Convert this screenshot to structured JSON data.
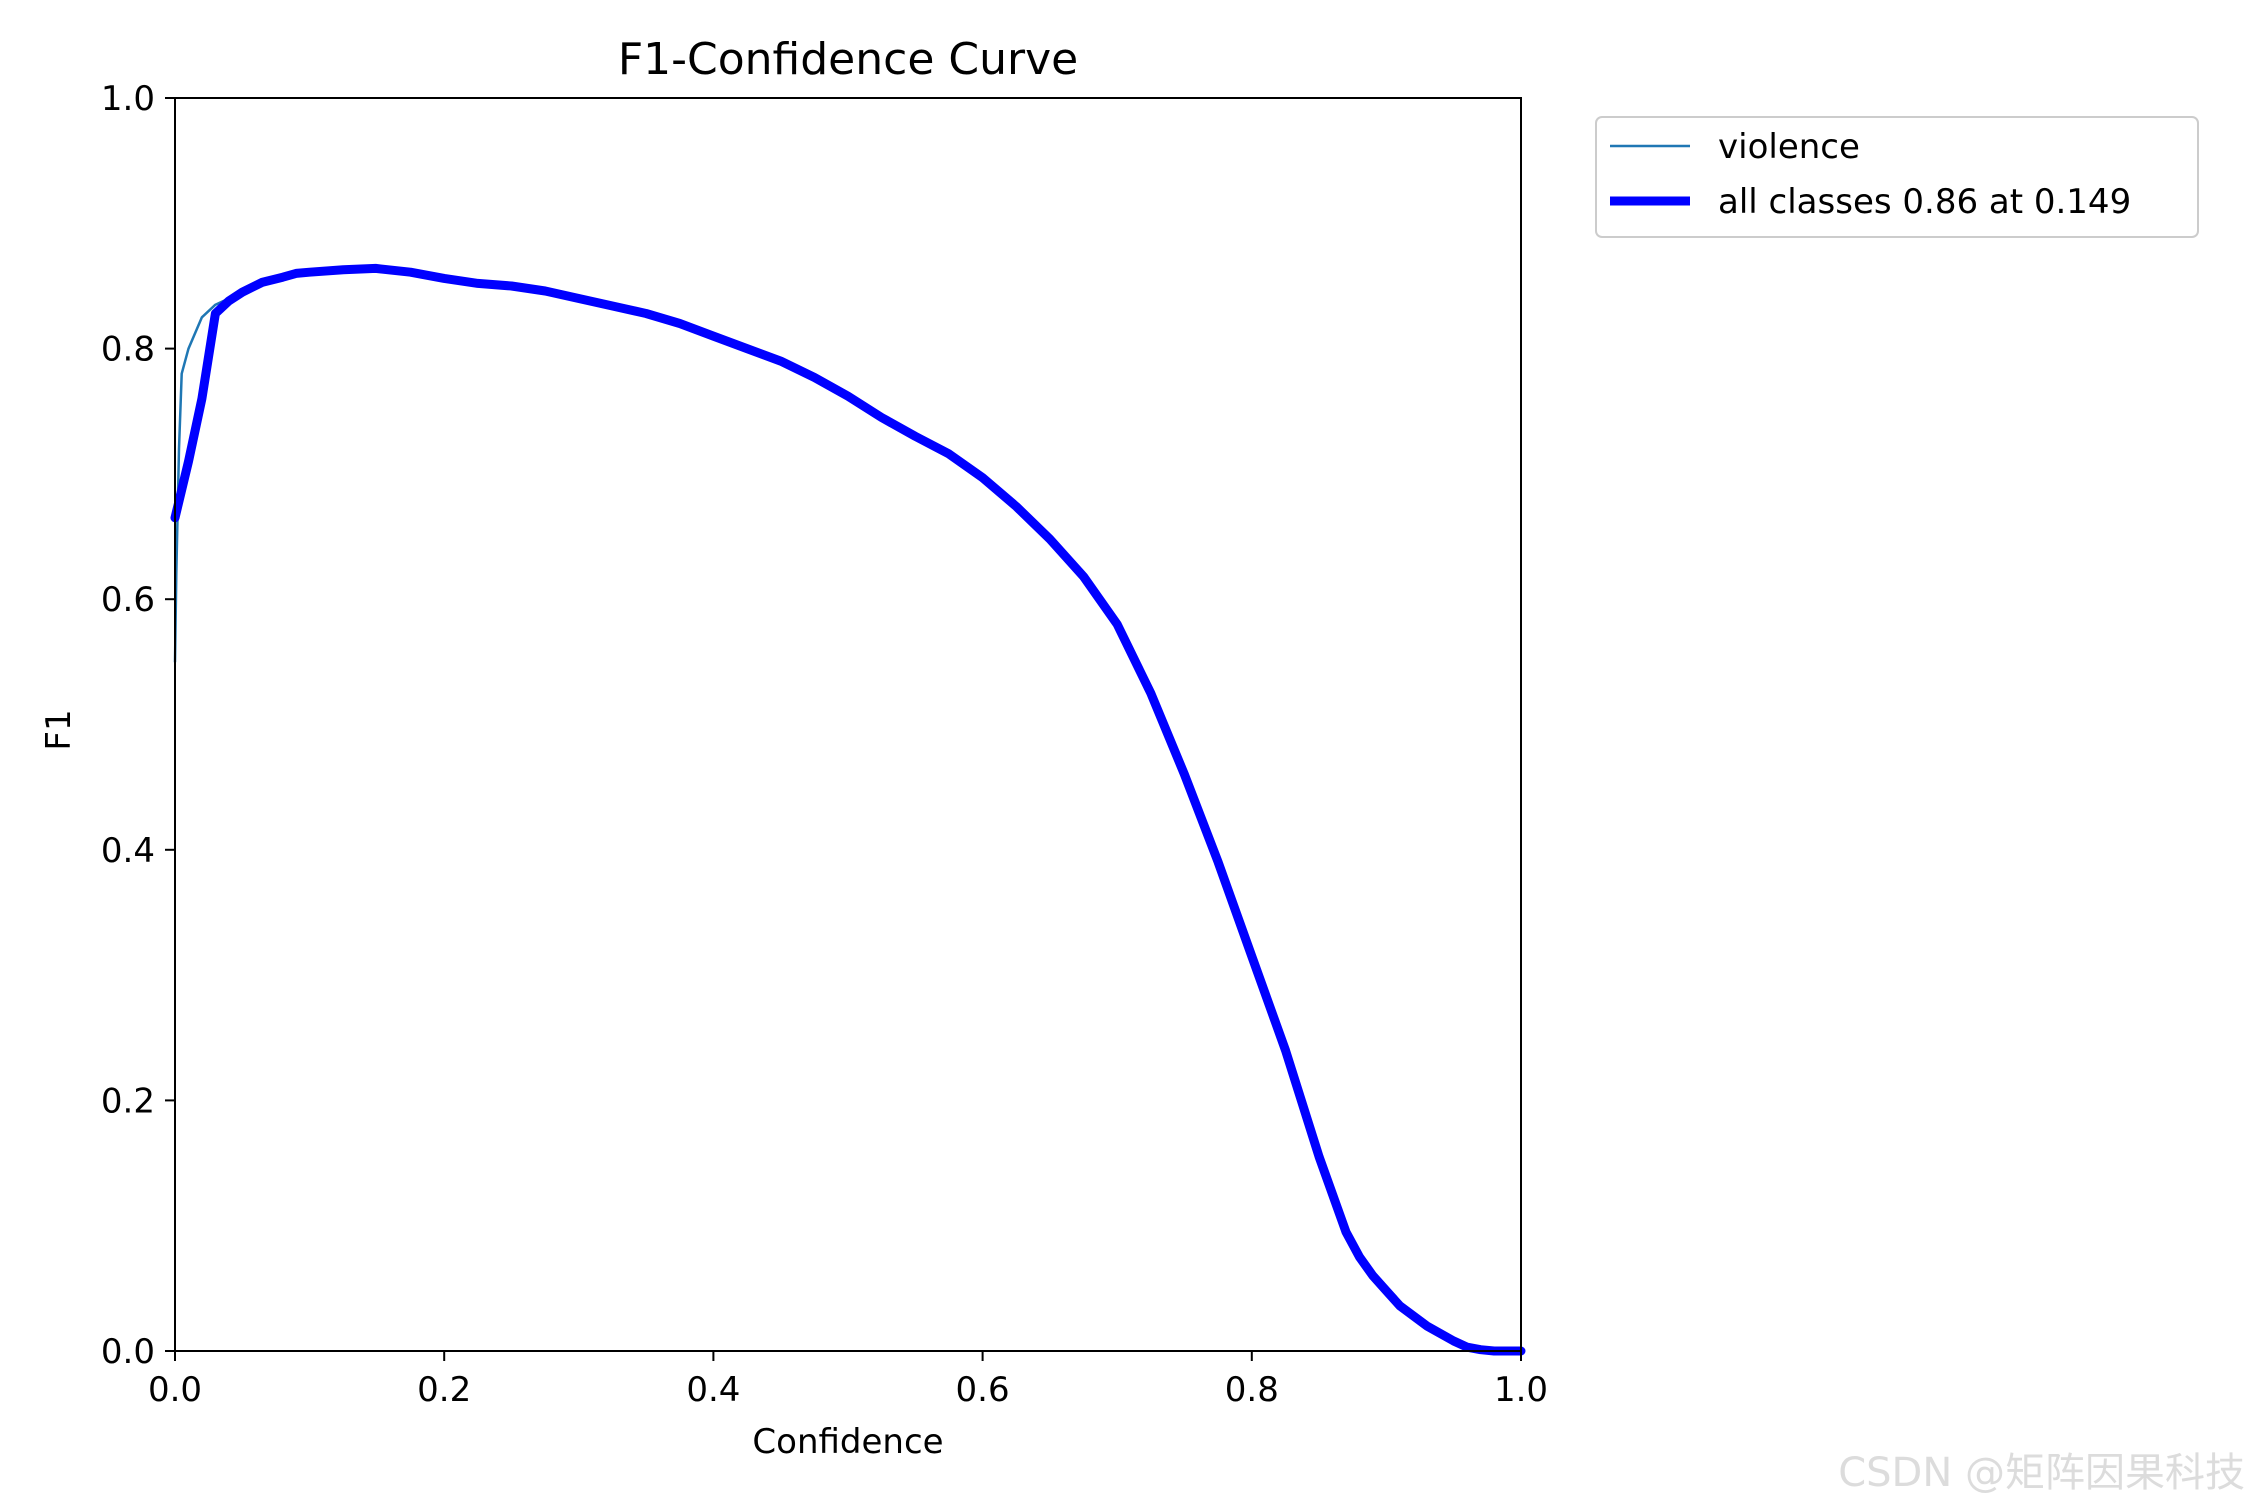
{
  "chart_data": {
    "type": "line",
    "title": "F1-Confidence Curve",
    "xlabel": "Confidence",
    "ylabel": "F1",
    "xlim": [
      0,
      1
    ],
    "ylim": [
      0,
      1
    ],
    "xticks": [
      "0.0",
      "0.2",
      "0.4",
      "0.6",
      "0.8",
      "1.0"
    ],
    "yticks": [
      "0.0",
      "0.2",
      "0.4",
      "0.6",
      "0.8",
      "1.0"
    ],
    "grid": false,
    "legend_position": "outside-top-right",
    "series": [
      {
        "name": "violence",
        "color": "#1f77b4",
        "x": [
          0.0,
          0.001,
          0.003,
          0.005,
          0.01,
          0.02,
          0.03,
          0.04,
          0.05,
          0.065,
          0.08,
          0.09,
          0.1,
          0.125,
          0.149,
          0.175,
          0.2,
          0.225,
          0.25,
          0.275,
          0.3,
          0.325,
          0.35,
          0.375,
          0.4,
          0.425,
          0.45,
          0.475,
          0.5,
          0.525,
          0.55,
          0.575,
          0.6,
          0.625,
          0.65,
          0.675,
          0.7,
          0.725,
          0.75,
          0.775,
          0.8,
          0.825,
          0.85,
          0.87,
          0.88,
          0.885,
          0.89,
          0.9,
          0.91,
          0.93,
          0.95,
          0.96,
          0.97,
          0.98,
          1.0
        ],
        "y": [
          0.55,
          0.62,
          0.72,
          0.78,
          0.8,
          0.825,
          0.835,
          0.84,
          0.845,
          0.853,
          0.857,
          0.86,
          0.861,
          0.863,
          0.864,
          0.861,
          0.856,
          0.852,
          0.85,
          0.846,
          0.84,
          0.834,
          0.828,
          0.82,
          0.81,
          0.8,
          0.79,
          0.777,
          0.762,
          0.745,
          0.73,
          0.716,
          0.697,
          0.674,
          0.648,
          0.618,
          0.58,
          0.525,
          0.46,
          0.39,
          0.315,
          0.24,
          0.155,
          0.095,
          0.075,
          0.065,
          0.058,
          0.05,
          0.038,
          0.02,
          0.008,
          0.003,
          0.001,
          0.0,
          0.0
        ]
      },
      {
        "name": "all classes 0.86 at 0.149",
        "color": "#0000ff",
        "x": [
          0.0,
          0.01,
          0.02,
          0.03,
          0.04,
          0.05,
          0.065,
          0.08,
          0.09,
          0.1,
          0.125,
          0.149,
          0.175,
          0.2,
          0.225,
          0.25,
          0.275,
          0.3,
          0.325,
          0.35,
          0.375,
          0.4,
          0.425,
          0.45,
          0.475,
          0.5,
          0.525,
          0.55,
          0.575,
          0.6,
          0.625,
          0.65,
          0.675,
          0.7,
          0.725,
          0.75,
          0.775,
          0.8,
          0.825,
          0.85,
          0.87,
          0.88,
          0.89,
          0.9,
          0.91,
          0.93,
          0.95,
          0.96,
          0.97,
          0.98,
          1.0
        ],
        "y": [
          0.665,
          0.71,
          0.76,
          0.828,
          0.838,
          0.845,
          0.853,
          0.857,
          0.86,
          0.861,
          0.863,
          0.864,
          0.861,
          0.856,
          0.852,
          0.85,
          0.846,
          0.84,
          0.834,
          0.828,
          0.82,
          0.81,
          0.8,
          0.79,
          0.777,
          0.762,
          0.745,
          0.73,
          0.716,
          0.697,
          0.674,
          0.648,
          0.618,
          0.58,
          0.525,
          0.46,
          0.39,
          0.315,
          0.24,
          0.155,
          0.095,
          0.075,
          0.06,
          0.048,
          0.036,
          0.02,
          0.008,
          0.003,
          0.001,
          0.0,
          0.0
        ]
      }
    ]
  },
  "watermark": "CSDN @矩阵因果科技"
}
